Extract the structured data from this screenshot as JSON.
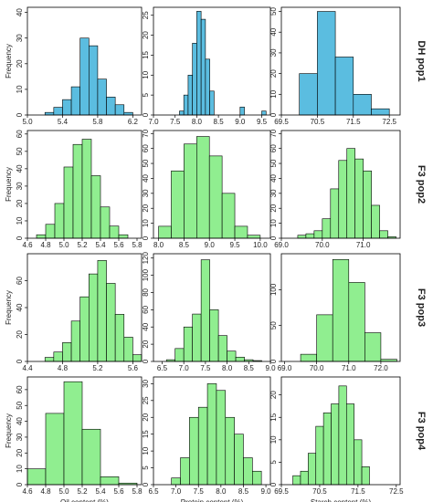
{
  "chart_data": [
    {
      "type": "histogram",
      "color": "#5bbde0",
      "ylabel": "Frequency",
      "bins": [
        5.2,
        5.3,
        5.4,
        5.5,
        5.6,
        5.7,
        5.8,
        5.9,
        6.0,
        6.1,
        6.2
      ],
      "counts": [
        1,
        3,
        6,
        11,
        30,
        27,
        14,
        7,
        4,
        1
      ],
      "xlim": [
        5.0,
        6.3
      ],
      "ylim": [
        0,
        42
      ],
      "xticks": [
        {
          "value": 5,
          "label": "5.0"
        },
        5.4,
        5.8,
        6.2
      ],
      "yticks": [
        0,
        10,
        20,
        30,
        40
      ]
    },
    {
      "type": "histogram",
      "color": "#5bbde0",
      "bins": [
        7.6,
        7.7,
        7.8,
        7.9,
        8.0,
        8.1,
        8.2,
        8.3,
        8.4,
        8.5,
        8.6,
        8.7,
        8.8,
        8.9,
        9.0,
        9.1,
        9.2,
        9.3,
        9.4,
        9.5,
        9.6
      ],
      "counts": [
        1,
        5,
        10,
        18,
        26,
        24,
        14,
        6,
        0,
        0,
        0,
        0,
        0,
        0,
        2,
        0,
        0,
        0,
        0,
        1
      ],
      "xlim": [
        7.0,
        9.7
      ],
      "ylim": [
        0,
        27
      ],
      "xticks": [
        {
          "value": 7,
          "label": "7.0"
        },
        7.5,
        {
          "value": 8,
          "label": "8.0"
        },
        8.5,
        {
          "value": 9,
          "label": "9.0"
        },
        9.5
      ],
      "yticks": [
        0,
        5,
        10,
        15,
        20,
        25
      ]
    },
    {
      "type": "histogram",
      "color": "#5bbde0",
      "row_label": "DH pop1",
      "bins": [
        70.0,
        70.5,
        71.0,
        71.5,
        72.0,
        72.5
      ],
      "counts": [
        20,
        50,
        28,
        10,
        3
      ],
      "xlim": [
        69.5,
        72.8
      ],
      "ylim": [
        0,
        52
      ],
      "xticks": [
        69.5,
        70.5,
        71.5,
        72.5
      ],
      "yticks": [
        0,
        10,
        20,
        30,
        40,
        50
      ]
    },
    {
      "type": "histogram",
      "color": "#90ee90",
      "ylabel": "Frequency",
      "bins": [
        4.7,
        4.8,
        4.9,
        5.0,
        5.1,
        5.2,
        5.3,
        5.4,
        5.5,
        5.6,
        5.7
      ],
      "counts": [
        2,
        8,
        20,
        41,
        54,
        57,
        36,
        18,
        7,
        2
      ],
      "xlim": [
        4.6,
        5.85
      ],
      "ylim": [
        0,
        62
      ],
      "xticks": [
        4.6,
        4.8,
        {
          "value": 5,
          "label": "5.0"
        },
        5.2,
        5.4,
        5.6,
        5.8
      ],
      "yticks": [
        0,
        10,
        20,
        30,
        40,
        50,
        60
      ]
    },
    {
      "type": "histogram",
      "color": "#90ee90",
      "bins": [
        8.0,
        8.25,
        8.5,
        8.75,
        9.0,
        9.25,
        9.5,
        9.75,
        10.0
      ],
      "counts": [
        8,
        45,
        63,
        68,
        55,
        30,
        8,
        2
      ],
      "xlim": [
        7.9,
        10.2
      ],
      "ylim": [
        0,
        72
      ],
      "xticks": [
        {
          "value": 8,
          "label": "8.0"
        },
        8.5,
        {
          "value": 9,
          "label": "9.0"
        },
        9.5,
        {
          "value": 10,
          "label": "10.0"
        }
      ],
      "yticks": [
        0,
        10,
        20,
        30,
        40,
        50,
        60,
        70
      ]
    },
    {
      "type": "histogram",
      "color": "#90ee90",
      "row_label": "F3 pop2",
      "bins": [
        69.4,
        69.6,
        69.8,
        70.0,
        70.2,
        70.4,
        70.6,
        70.8,
        71.0,
        71.2,
        71.4,
        71.6,
        71.8
      ],
      "counts": [
        2,
        3,
        5,
        13,
        33,
        52,
        60,
        53,
        45,
        22,
        5,
        1
      ],
      "xlim": [
        69.0,
        71.9
      ],
      "ylim": [
        0,
        72
      ],
      "xticks": [
        {
          "value": 69,
          "label": "69.0"
        },
        {
          "value": 70,
          "label": "70.0"
        },
        {
          "value": 71,
          "label": "71.0"
        }
      ],
      "yticks": [
        0,
        10,
        20,
        30,
        40,
        50,
        60,
        70
      ]
    },
    {
      "type": "histogram",
      "color": "#90ee90",
      "ylabel": "Frequency",
      "bins": [
        4.6,
        4.7,
        4.8,
        4.9,
        5.0,
        5.1,
        5.2,
        5.3,
        5.4,
        5.5,
        5.6,
        5.7
      ],
      "counts": [
        3,
        7,
        14,
        30,
        48,
        65,
        75,
        58,
        35,
        18,
        5
      ],
      "xlim": [
        4.4,
        5.7
      ],
      "ylim": [
        0,
        80
      ],
      "xticks": [
        4.4,
        4.8,
        5.2,
        5.6
      ],
      "yticks": [
        0,
        20,
        40,
        60
      ]
    },
    {
      "type": "histogram",
      "color": "#90ee90",
      "bins": [
        6.6,
        6.8,
        7.0,
        7.2,
        7.4,
        7.6,
        7.8,
        8.0,
        8.2,
        8.4,
        8.6,
        8.8
      ],
      "counts": [
        2,
        15,
        40,
        55,
        118,
        60,
        30,
        12,
        5,
        2,
        1
      ],
      "xlim": [
        6.3,
        9.0
      ],
      "ylim": [
        0,
        125
      ],
      "xticks": [
        6.5,
        {
          "value": 7,
          "label": "7.0"
        },
        7.5,
        {
          "value": 8,
          "label": "8.0"
        },
        8.5,
        {
          "value": 9,
          "label": "9.0"
        }
      ],
      "yticks": [
        0,
        20,
        40,
        60,
        80,
        100,
        120
      ]
    },
    {
      "type": "histogram",
      "color": "#90ee90",
      "row_label": "F3 pop3",
      "bins": [
        69.5,
        70.0,
        70.5,
        71.0,
        71.5,
        72.0,
        72.5
      ],
      "counts": [
        10,
        65,
        142,
        110,
        40,
        3
      ],
      "xlim": [
        68.9,
        72.6
      ],
      "ylim": [
        0,
        150
      ],
      "xticks": [
        {
          "value": 69,
          "label": "69.0"
        },
        {
          "value": 70,
          "label": "70.0"
        },
        {
          "value": 71,
          "label": "71.0"
        },
        {
          "value": 72,
          "label": "72.0"
        }
      ],
      "yticks": [
        0,
        50,
        100
      ]
    },
    {
      "type": "histogram",
      "color": "#90ee90",
      "ylabel": "Frequency",
      "xlabel": "Oil content (%)",
      "bins": [
        4.6,
        4.8,
        5.0,
        5.2,
        5.4,
        5.6,
        5.8
      ],
      "counts": [
        10,
        45,
        65,
        35,
        5,
        1
      ],
      "xlim": [
        4.6,
        5.85
      ],
      "ylim": [
        0,
        68
      ],
      "xticks": [
        4.6,
        4.8,
        {
          "value": 5,
          "label": "5.0"
        },
        5.2,
        5.4,
        5.6,
        5.8
      ],
      "yticks": [
        0,
        10,
        20,
        30,
        40,
        50,
        60
      ]
    },
    {
      "type": "histogram",
      "color": "#90ee90",
      "xlabel": "Protein content (%)",
      "bins": [
        6.9,
        7.1,
        7.3,
        7.5,
        7.7,
        7.9,
        8.1,
        8.3,
        8.5,
        8.7,
        8.9
      ],
      "counts": [
        2,
        8,
        20,
        23,
        30,
        28,
        20,
        15,
        8,
        4
      ],
      "xlim": [
        6.5,
        9.1
      ],
      "ylim": [
        0,
        32
      ],
      "xticks": [
        6.5,
        {
          "value": 7,
          "label": "7.0"
        },
        7.5,
        {
          "value": 8,
          "label": "8.0"
        },
        8.5,
        {
          "value": 9,
          "label": "9.0"
        }
      ],
      "yticks": [
        0,
        5,
        10,
        15,
        20,
        25,
        30
      ]
    },
    {
      "type": "histogram",
      "color": "#90ee90",
      "xlabel": "Starch content (%)",
      "row_label": "F3 pop4",
      "bins": [
        69.8,
        70.0,
        70.2,
        70.4,
        70.6,
        70.8,
        71.0,
        71.2,
        71.4,
        71.6,
        71.8
      ],
      "counts": [
        2,
        3,
        7,
        13,
        16,
        18,
        22,
        18,
        10,
        4
      ],
      "xlim": [
        69.5,
        72.6
      ],
      "ylim": [
        0,
        24
      ],
      "xticks": [
        69.5,
        70.5,
        71.5,
        72.5
      ],
      "yticks": [
        0,
        5,
        10,
        15,
        20
      ]
    }
  ]
}
